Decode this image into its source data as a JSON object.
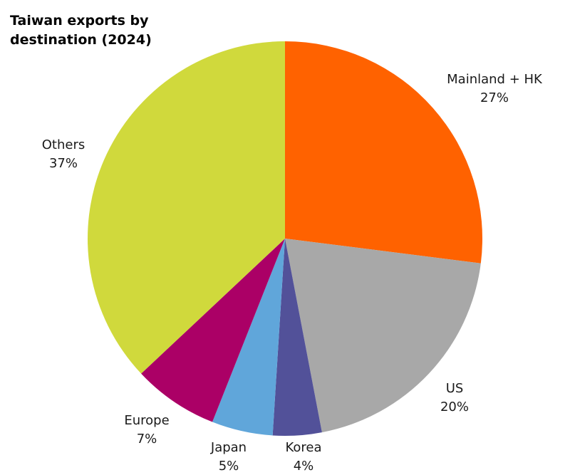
{
  "chart_data": {
    "type": "pie",
    "title_lines": [
      "Taiwan exports by",
      "destination (2024)"
    ],
    "slices": [
      {
        "name": "Mainland + HK",
        "value": 27,
        "label": "27%",
        "color": "#FF6200"
      },
      {
        "name": "US",
        "value": 20,
        "label": "20%",
        "color": "#A8A8A8"
      },
      {
        "name": "Korea",
        "value": 4,
        "label": "4%",
        "color": "#525199"
      },
      {
        "name": "Japan",
        "value": 5,
        "label": "5%",
        "color": "#60A6DA"
      },
      {
        "name": "Europe",
        "value": 7,
        "label": "7%",
        "color": "#AB0066"
      },
      {
        "name": "Others",
        "value": 37,
        "label": "37%",
        "color": "#D0D93C"
      }
    ],
    "start_angle": "12 o'clock",
    "direction": "clockwise",
    "legend": "none, labels placed outside slices"
  }
}
